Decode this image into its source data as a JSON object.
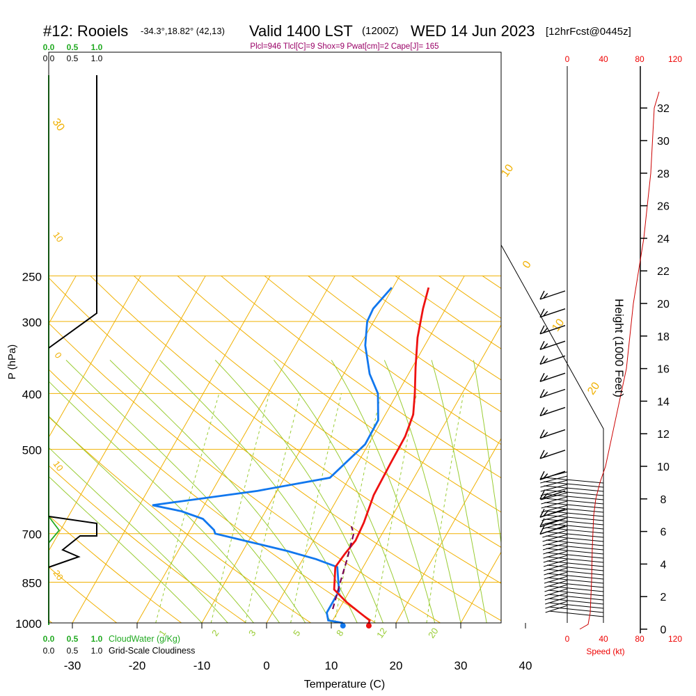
{
  "header": {
    "station": "#12: Rooiels",
    "coords": "-34.3°,18.82° (42,13)",
    "valid": "Valid 1400 LST",
    "zulu": "(1200Z)",
    "date": "WED 14 Jun 2023",
    "forecast": "[12hrFcst@0445z]",
    "indices": "Plcl=946 Tlcl[C]=9 Shox=9 Pwat[cm]=2 Cape[J]= 165"
  },
  "colors": {
    "temperature": "#ee1111",
    "dewpoint": "#1177ee",
    "parcel": "#770055",
    "isobar": "#f0b000",
    "adiabat": "#99cc33",
    "cloudwater": "#22aa22",
    "speed": "#ee0000",
    "indices": "#990066"
  },
  "labels": {
    "p_axis": "P (hPa)",
    "t_axis": "Temperature (C)",
    "h_axis": "Height (1000 Feet)",
    "cloudwater": "CloudWater (g/Kg)",
    "cloudiness": "Grid-Scale Cloudiness",
    "speed": "Speed (kt)"
  },
  "scales": {
    "cloudwater_ticks": [
      "0.0",
      "0.5",
      "1.0"
    ],
    "cloudiness_ticks": [
      "0.0",
      "0.5",
      "1.0"
    ],
    "speed_ticks": [
      "0",
      "40",
      "80",
      "120"
    ]
  },
  "chart_data": {
    "type": "line",
    "title": "#12: Rooiels  Valid 1400 LST (1200Z) WED 14 Jun 2023",
    "xlabel": "Temperature (C)",
    "ylabel": "P (hPa)",
    "y_scale": "log-pressure",
    "pressure_ticks": [
      "250",
      "300",
      "400",
      "500",
      "700",
      "850",
      "1000"
    ],
    "temperature_ticks": [
      "-30",
      "-20",
      "-10",
      "0",
      "10",
      "20",
      "30",
      "40"
    ],
    "height_ticks": [
      "0",
      "2",
      "4",
      "6",
      "8",
      "10",
      "12",
      "14",
      "16",
      "18",
      "20",
      "22",
      "24",
      "26",
      "28",
      "30",
      "32"
    ],
    "isotherm_labels": [
      "10",
      "0",
      "10",
      "20",
      "30"
    ],
    "adiabat_labels": [
      "10",
      "0",
      "10",
      "20",
      "30"
    ],
    "mixing_ratio_labels": [
      "1",
      "2",
      "3",
      "5",
      "8",
      "12",
      "20"
    ],
    "series": [
      {
        "name": "Temperature",
        "points": [
          [
            15.8,
            1000
          ],
          [
            15.7,
            990
          ],
          [
            13.5,
            960
          ],
          [
            10.5,
            920
          ],
          [
            7.5,
            875
          ],
          [
            5.7,
            800
          ],
          [
            6.0,
            760
          ],
          [
            6.5,
            720
          ],
          [
            6.2,
            670
          ],
          [
            5.3,
            600
          ],
          [
            5.1,
            530
          ],
          [
            5.0,
            475
          ],
          [
            4.3,
            435
          ],
          [
            2.7,
            400
          ],
          [
            0.5,
            360
          ],
          [
            -1.8,
            320
          ],
          [
            -3.5,
            285
          ],
          [
            -4.5,
            262
          ]
        ]
      },
      {
        "name": "Dewpoint",
        "points": [
          [
            11.8,
            1000
          ],
          [
            9.3,
            990
          ],
          [
            8.4,
            960
          ],
          [
            8.4,
            880
          ],
          [
            7.8,
            860
          ],
          [
            6.0,
            800
          ],
          [
            2.0,
            775
          ],
          [
            -3.2,
            750
          ],
          [
            -15.8,
            700
          ],
          [
            -16.3,
            690
          ],
          [
            -19.0,
            660
          ],
          [
            -23.0,
            640
          ],
          [
            -28.0,
            625
          ],
          [
            -13.0,
            590
          ],
          [
            -3.0,
            560
          ],
          [
            -0.5,
            490
          ],
          [
            -0.6,
            445
          ],
          [
            -3.0,
            400
          ],
          [
            -6.0,
            370
          ],
          [
            -9.2,
            330
          ],
          [
            -11.0,
            300
          ],
          [
            -11.2,
            285
          ],
          [
            -10.2,
            262
          ]
        ]
      },
      {
        "name": "Parcel",
        "points": [
          [
            9.0,
            946
          ],
          [
            7.8,
            850
          ],
          [
            6.9,
            780
          ],
          [
            5.6,
            700
          ],
          [
            4.6,
            680
          ]
        ]
      }
    ],
    "cloudiness_profile": [
      [
        0.0,
        260
      ],
      [
        0.0,
        470
      ],
      [
        0.0,
        510
      ],
      [
        0.0,
        800
      ],
      [
        0.5,
        810
      ],
      [
        0.6,
        830
      ],
      [
        0.5,
        860
      ],
      [
        0.0,
        880
      ]
    ],
    "cloudwater_profile": [
      [
        0.0,
        780
      ],
      [
        0.25,
        800
      ],
      [
        0.0,
        820
      ]
    ],
    "wind_speed_height": [
      [
        0,
        2
      ],
      [
        1,
        25
      ],
      [
        5,
        25
      ],
      [
        7,
        22
      ],
      [
        9,
        14
      ],
      [
        12,
        12
      ],
      [
        16,
        8
      ],
      [
        20,
        5
      ],
      [
        25,
        3
      ],
      [
        32,
        0
      ]
    ],
    "wind_barbs": [
      {
        "p": 270,
        "kt": 15
      },
      {
        "p": 290,
        "kt": 15
      },
      {
        "p": 310,
        "kt": 15
      },
      {
        "p": 330,
        "kt": 15
      },
      {
        "p": 350,
        "kt": 15
      },
      {
        "p": 375,
        "kt": 15
      },
      {
        "p": 400,
        "kt": 15
      },
      {
        "p": 430,
        "kt": 15
      },
      {
        "p": 470,
        "kt": 15
      },
      {
        "p": 510,
        "kt": 15
      },
      {
        "p": 555,
        "kt": 15
      },
      {
        "p": 600,
        "kt": 15
      },
      {
        "p": 645,
        "kt": 15
      },
      {
        "p": 670,
        "kt": 10
      },
      {
        "p": 690,
        "kt": 10
      }
    ]
  }
}
